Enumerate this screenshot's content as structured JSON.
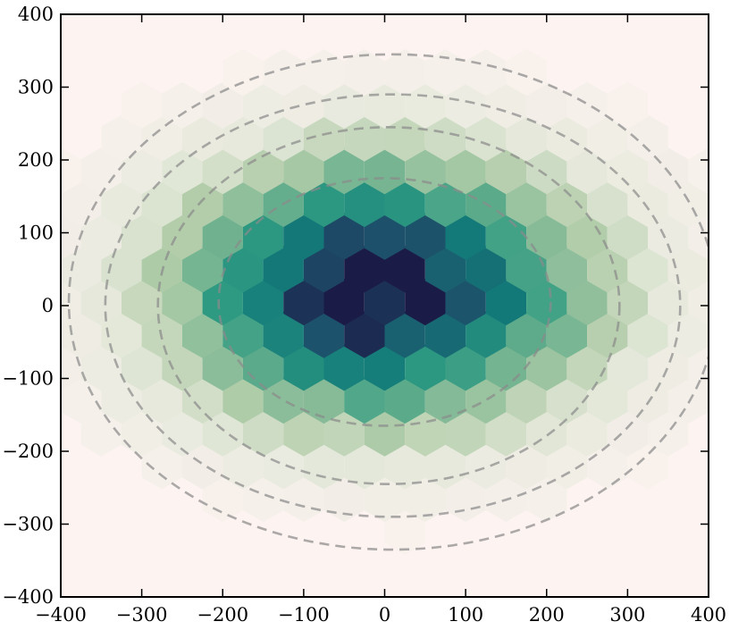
{
  "chart_data": {
    "type": "heatmap",
    "subtype": "hexbin-density-with-dashed-contours",
    "title": "",
    "xlabel": "",
    "ylabel": "",
    "xlim": [
      -400,
      400
    ],
    "ylim": [
      -400,
      400
    ],
    "xticks": [
      "−400",
      "−300",
      "−200",
      "−100",
      "0",
      "100",
      "200",
      "300",
      "400"
    ],
    "yticks": [
      "400",
      "300",
      "200",
      "100",
      "0",
      "−100",
      "−200",
      "−300",
      "−400"
    ],
    "xtick_values": [
      -400,
      -300,
      -200,
      -100,
      0,
      100,
      200,
      300,
      400
    ],
    "ytick_values": [
      400,
      300,
      200,
      100,
      0,
      -100,
      -200,
      -300,
      -400
    ],
    "grid": false,
    "background_color": "#fdf3f1",
    "colormap": [
      "#fdf3f1",
      "#e4e8da",
      "#b3cdaa",
      "#6fb28f",
      "#2e9a82",
      "#137a79",
      "#1d4f6a",
      "#1b1b48"
    ],
    "hexbin": {
      "bin_size_x": 50,
      "bin_size_y": 45,
      "density_center": [
        0,
        20
      ],
      "density_sigma": [
        165,
        115
      ],
      "peak": [
        -40,
        35
      ]
    },
    "contours": [
      {
        "center": [
          0,
          5
        ],
        "rx": 205,
        "ry": 170
      },
      {
        "center": [
          5,
          0
        ],
        "rx": 285,
        "ry": 245
      },
      {
        "center": [
          10,
          0
        ],
        "rx": 355,
        "ry": 290
      },
      {
        "center": [
          10,
          5
        ],
        "rx": 400,
        "ry": 340
      }
    ],
    "contour_color": "#8a8a8a"
  }
}
